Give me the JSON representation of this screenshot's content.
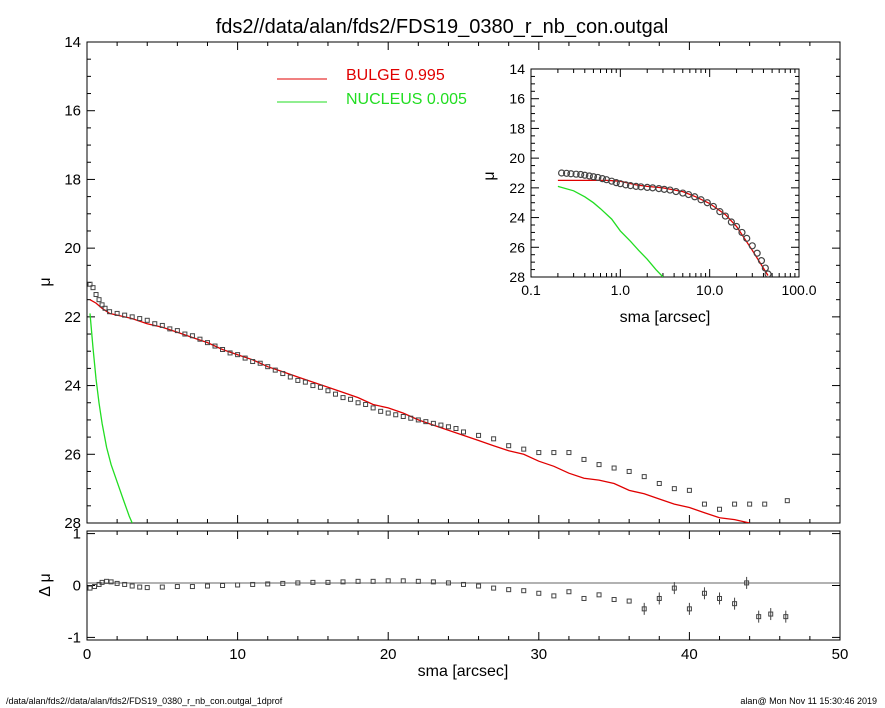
{
  "title": "fds2//data/alan/fds2/FDS19_0380_r_nb_con.outgal",
  "footer": {
    "left": "/data/alan/fds2//data/alan/fds2/FDS19_0380_r_nb_con.outgal_1dprof",
    "right": "alan@  Mon Nov 11 15:30:46 2019"
  },
  "colors": {
    "bulge": "#e00000",
    "nucleus": "#22dd22",
    "data": "#444444",
    "axes": "#000000"
  },
  "chart_data": [
    {
      "id": "main",
      "type": "scatter",
      "xlabel": "",
      "ylabel": "μ",
      "xlim": [
        0,
        50
      ],
      "ylim": [
        28,
        14
      ],
      "y_inverted": true,
      "yticks": [
        14,
        16,
        18,
        20,
        22,
        24,
        26,
        28
      ],
      "legend": {
        "placement": "top-center",
        "entries": [
          {
            "label": "BULGE  0.995",
            "color": "#e00000"
          },
          {
            "label": "NUCLEUS  0.005",
            "color": "#22dd22"
          }
        ]
      },
      "series": [
        {
          "name": "BULGE",
          "color": "#e00000",
          "x": [
            0.2,
            0.6,
            1,
            1.5,
            2,
            3,
            4,
            5,
            6,
            7,
            8,
            9,
            10,
            11,
            12,
            13,
            14,
            15,
            16,
            17,
            18,
            19,
            20,
            21,
            22,
            23,
            24,
            25,
            26,
            27,
            28,
            29,
            30,
            31,
            32,
            33,
            34,
            35,
            36,
            37,
            38,
            39,
            40,
            41,
            42,
            43,
            44
          ],
          "y": [
            21.5,
            21.6,
            21.75,
            21.9,
            21.95,
            22.05,
            22.2,
            22.3,
            22.45,
            22.6,
            22.75,
            22.95,
            23.1,
            23.25,
            23.45,
            23.6,
            23.75,
            23.9,
            24.05,
            24.2,
            24.35,
            24.55,
            24.65,
            24.8,
            25,
            25.15,
            25.3,
            25.45,
            25.6,
            25.75,
            25.9,
            26,
            26.2,
            26.35,
            26.55,
            26.7,
            26.75,
            26.85,
            27.05,
            27.15,
            27.3,
            27.45,
            27.55,
            27.7,
            27.85,
            27.9,
            28.0
          ]
        },
        {
          "name": "NUCLEUS",
          "color": "#22dd22",
          "x": [
            0.2,
            0.4,
            0.6,
            0.8,
            1.0,
            1.3,
            1.6,
            2.0,
            2.4,
            2.8,
            3.0
          ],
          "y": [
            21.9,
            22.9,
            23.8,
            24.5,
            25.1,
            25.8,
            26.3,
            26.8,
            27.3,
            27.8,
            28.0
          ]
        },
        {
          "name": "",
          "color": "#444444",
          "marker": "square",
          "x": [
            0.2,
            0.4,
            0.6,
            0.8,
            1.0,
            1.2,
            1.5,
            2,
            2.5,
            3,
            3.5,
            4,
            4.5,
            5,
            5.5,
            6,
            6.5,
            7,
            7.5,
            8,
            8.5,
            9,
            9.5,
            10,
            10.5,
            11,
            11.5,
            12,
            12.5,
            13,
            13.5,
            14,
            14.5,
            15,
            15.5,
            16,
            16.5,
            17,
            17.5,
            18,
            18.5,
            19,
            19.5,
            20,
            20.5,
            21,
            21.5,
            22,
            22.5,
            23,
            23.5,
            24,
            24.5,
            25,
            26,
            27,
            28,
            29,
            30,
            31,
            32,
            33,
            34,
            35,
            36,
            37,
            38,
            39,
            40,
            41,
            42,
            43,
            44,
            45,
            46.5
          ],
          "y": [
            21.05,
            21.15,
            21.35,
            21.5,
            21.65,
            21.75,
            21.85,
            21.9,
            21.95,
            22.0,
            22.05,
            22.1,
            22.2,
            22.25,
            22.35,
            22.4,
            22.5,
            22.55,
            22.65,
            22.75,
            22.85,
            22.95,
            23.05,
            23.1,
            23.2,
            23.3,
            23.35,
            23.45,
            23.55,
            23.65,
            23.75,
            23.85,
            23.9,
            24.0,
            24.05,
            24.15,
            24.25,
            24.35,
            24.4,
            24.5,
            24.55,
            24.65,
            24.75,
            24.8,
            24.85,
            24.9,
            24.95,
            25.0,
            25.05,
            25.1,
            25.15,
            25.2,
            25.25,
            25.35,
            25.45,
            25.55,
            25.75,
            25.85,
            25.95,
            25.95,
            25.95,
            26.15,
            26.3,
            26.4,
            26.5,
            26.65,
            26.85,
            27.0,
            27.05,
            27.45,
            27.6,
            27.45,
            27.45,
            27.45,
            27.35
          ]
        }
      ]
    },
    {
      "id": "residual",
      "type": "scatter",
      "xlabel": "sma [arcsec]",
      "ylabel": "Δ μ",
      "xlim": [
        0,
        50
      ],
      "ylim": [
        -1.05,
        1.05
      ],
      "xticks": [
        0,
        10,
        20,
        30,
        40,
        50
      ],
      "yticks": [
        -1,
        0,
        1
      ],
      "series": [
        {
          "name": "",
          "color": "#444444",
          "marker": "square",
          "x": [
            0.2,
            0.5,
            0.8,
            1.0,
            1.3,
            1.6,
            2.0,
            2.5,
            3,
            3.5,
            4,
            5,
            6,
            7,
            8,
            9,
            10,
            11,
            12,
            13,
            14,
            15,
            16,
            17,
            18,
            19,
            20,
            21,
            22,
            23,
            24,
            25,
            26,
            27,
            28,
            29,
            30,
            31,
            32,
            33,
            34,
            35,
            36,
            37,
            38,
            39,
            40,
            41,
            42,
            43,
            43.8,
            44.6,
            45.4,
            46.4
          ],
          "y": [
            -0.05,
            -0.02,
            0.02,
            0.06,
            0.08,
            0.07,
            0.04,
            0.02,
            -0.01,
            -0.03,
            -0.04,
            -0.03,
            -0.02,
            -0.02,
            -0.01,
            0.0,
            0.01,
            0.02,
            0.03,
            0.04,
            0.05,
            0.06,
            0.06,
            0.07,
            0.08,
            0.08,
            0.09,
            0.09,
            0.08,
            0.07,
            0.05,
            0.02,
            -0.01,
            -0.05,
            -0.08,
            -0.1,
            -0.15,
            -0.2,
            -0.12,
            -0.25,
            -0.18,
            -0.27,
            -0.3,
            -0.45,
            -0.25,
            -0.05,
            -0.45,
            -0.15,
            -0.25,
            -0.35,
            0.05,
            -0.6,
            -0.55,
            -0.6
          ]
        }
      ]
    },
    {
      "id": "inset",
      "type": "scatter",
      "xscale": "log",
      "xlabel": "sma [arcsec]",
      "ylabel": "μ",
      "xlim": [
        0.1,
        100
      ],
      "ylim": [
        28,
        14
      ],
      "xticks": [
        0.1,
        1.0,
        10.0,
        100.0
      ],
      "xticklabels": [
        "0.1",
        "1.0",
        "10.0",
        "100.0"
      ],
      "yticks": [
        14,
        16,
        18,
        20,
        22,
        24,
        26,
        28
      ],
      "series": [
        {
          "name": "BULGE",
          "color": "#e00000",
          "x": [
            0.2,
            0.3,
            0.5,
            0.7,
            1.0,
            1.5,
            2,
            3,
            5,
            7,
            10,
            15,
            20,
            30,
            45
          ],
          "y": [
            21.5,
            21.5,
            21.5,
            21.5,
            21.55,
            21.8,
            21.9,
            22.0,
            22.25,
            22.6,
            23.05,
            23.8,
            24.6,
            26.2,
            27.9
          ]
        },
        {
          "name": "NUCLEUS",
          "color": "#22dd22",
          "x": [
            0.2,
            0.3,
            0.4,
            0.5,
            0.6,
            0.8,
            1.0,
            1.3,
            1.6,
            2.0,
            2.5,
            3.0
          ],
          "y": [
            21.9,
            22.2,
            22.6,
            23.0,
            23.4,
            24.1,
            24.9,
            25.6,
            26.2,
            26.8,
            27.5,
            28.0
          ]
        },
        {
          "name": "",
          "color": "#444444",
          "marker": "circle",
          "x": [
            0.22,
            0.25,
            0.28,
            0.32,
            0.36,
            0.4,
            0.45,
            0.5,
            0.56,
            0.63,
            0.7,
            0.8,
            0.9,
            1.0,
            1.15,
            1.3,
            1.5,
            1.7,
            2.0,
            2.3,
            2.7,
            3.1,
            3.6,
            4.2,
            5.0,
            5.8,
            6.8,
            8.0,
            9.4,
            11,
            13,
            15,
            17.5,
            20,
            23,
            26,
            30,
            34,
            38,
            42,
            45
          ],
          "y": [
            21.0,
            21.02,
            21.05,
            21.08,
            21.1,
            21.15,
            21.2,
            21.25,
            21.3,
            21.38,
            21.45,
            21.55,
            21.65,
            21.72,
            21.8,
            21.85,
            21.9,
            21.93,
            21.97,
            22.0,
            22.05,
            22.1,
            22.15,
            22.25,
            22.35,
            22.45,
            22.6,
            22.8,
            23.0,
            23.25,
            23.6,
            23.9,
            24.3,
            24.6,
            25.0,
            25.4,
            25.9,
            26.4,
            26.9,
            27.4,
            27.8
          ]
        }
      ]
    }
  ]
}
